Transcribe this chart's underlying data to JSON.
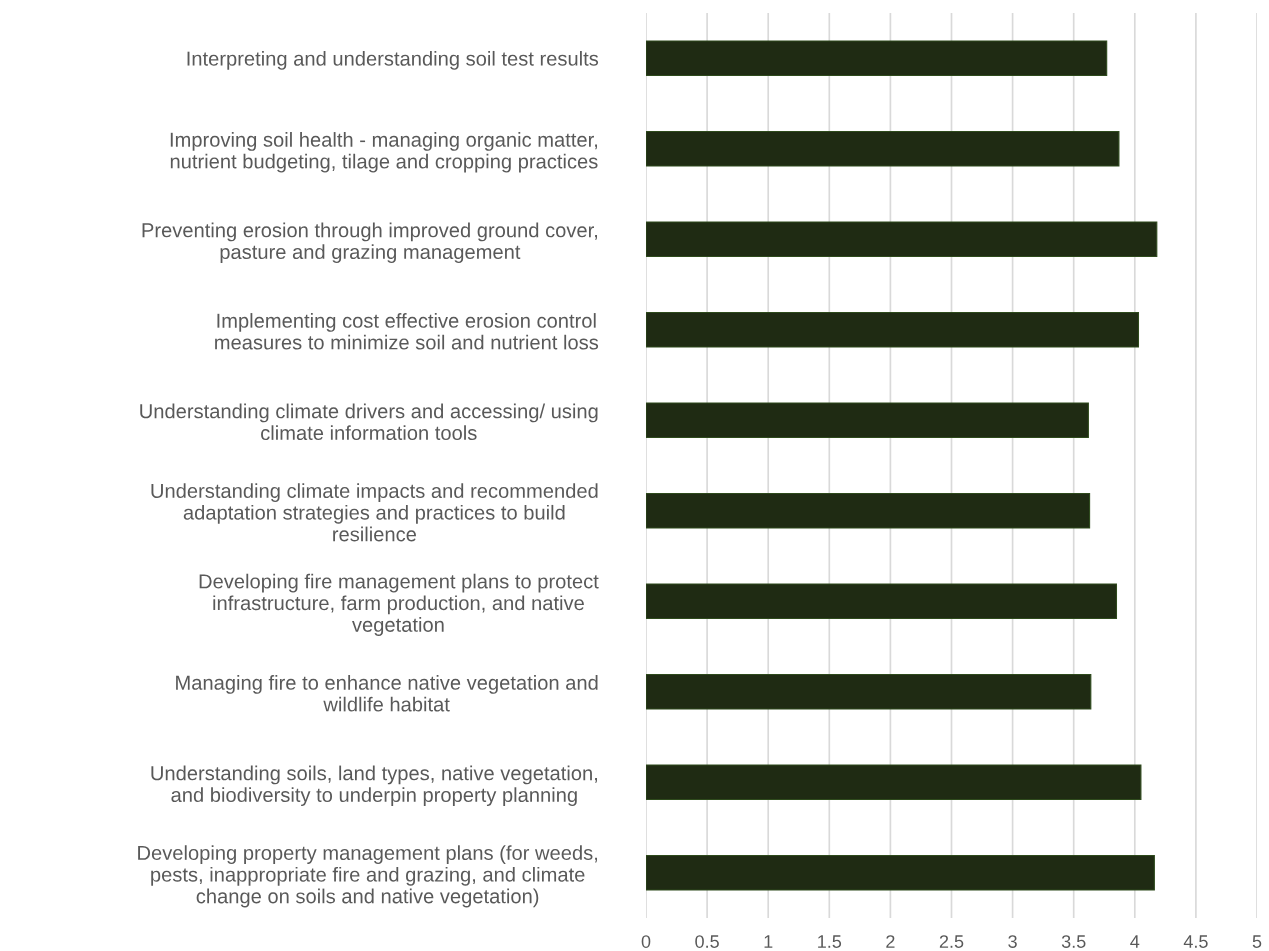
{
  "chart_data": {
    "type": "bar",
    "orientation": "horizontal",
    "categories": [
      "Interpreting and understanding soil test results",
      "Improving soil health - managing organic matter,\nnutrient budgeting, tilage and cropping practices",
      "Preventing erosion through improved ground cover,\npasture and grazing management",
      "Implementing cost effective erosion control\nmeasures to minimize soil and nutrient loss",
      "Understanding climate drivers and accessing/ using\nclimate information tools",
      "Understanding climate impacts and recommended\nadaptation strategies and practices to build\nresilience",
      "Developing fire management plans to protect\ninfrastructure, farm production, and native\nvegetation",
      "Managing fire to enhance native vegetation and\nwildlife habitat",
      "Understanding soils, land types, native vegetation,\nand biodiversity to underpin property planning",
      "Developing property management plans (for weeds,\npests, inappropriate fire and grazing, and climate\nchange on soils and native vegetation)"
    ],
    "values": [
      3.77,
      3.87,
      4.18,
      4.03,
      3.62,
      3.63,
      3.85,
      3.64,
      4.05,
      4.16
    ],
    "color": "#1f2b13",
    "xlim": [
      0,
      5
    ],
    "xticks": [
      0,
      0.5,
      1,
      1.5,
      2,
      2.5,
      3,
      3.5,
      4,
      4.5,
      5
    ],
    "grid": "x"
  }
}
